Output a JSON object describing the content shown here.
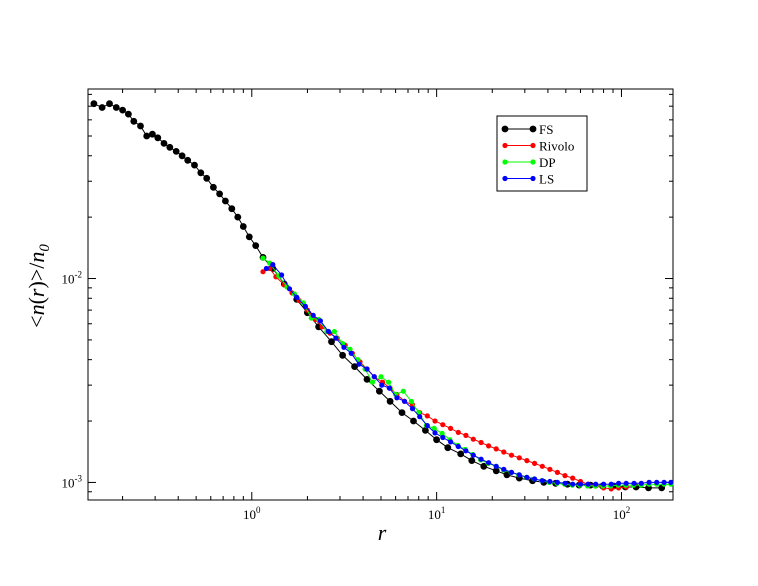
{
  "chart_data": {
    "type": "line",
    "title": "",
    "xlabel": "r",
    "ylabel": "<n(r)>/n0",
    "ylabel_parts": {
      "open": "<",
      "n": "n",
      "paren_open": "(",
      "r": "r",
      "paren_close": ")",
      "close": ">/",
      "denom": "n",
      "sub": "0"
    },
    "xscale": "log",
    "yscale": "log",
    "xlim": [
      0.13,
      190
    ],
    "ylim": [
      0.00082,
      0.085
    ],
    "grid": false,
    "legend_position": "top-right",
    "x_ticks": [
      {
        "value": 1,
        "base": "10",
        "exp": "0"
      },
      {
        "value": 10,
        "base": "10",
        "exp": "1"
      },
      {
        "value": 100,
        "base": "10",
        "exp": "2"
      }
    ],
    "y_ticks": [
      {
        "value": 0.001,
        "base": "10",
        "exp": "-3"
      },
      {
        "value": 0.01,
        "base": "10",
        "exp": "-2"
      }
    ],
    "series": [
      {
        "name": "FS",
        "color": "#000000",
        "marker_size": 3.4,
        "x": [
          0.14,
          0.155,
          0.17,
          0.185,
          0.2,
          0.215,
          0.23,
          0.25,
          0.27,
          0.29,
          0.31,
          0.335,
          0.36,
          0.39,
          0.42,
          0.45,
          0.49,
          0.53,
          0.57,
          0.62,
          0.67,
          0.72,
          0.78,
          0.84,
          0.9,
          0.97,
          1.05,
          1.15,
          1.3,
          1.5,
          1.75,
          2.0,
          2.3,
          2.7,
          3.1,
          3.6,
          4.2,
          4.9,
          5.6,
          6.5,
          7.5,
          8.7,
          10,
          11.5,
          13.5,
          15.5,
          18,
          21,
          24,
          28,
          33,
          38,
          44,
          51,
          59,
          68,
          79,
          91,
          105,
          120,
          140,
          165
        ],
        "y": [
          0.072,
          0.069,
          0.072,
          0.069,
          0.067,
          0.064,
          0.059,
          0.056,
          0.05,
          0.051,
          0.049,
          0.046,
          0.044,
          0.042,
          0.04,
          0.038,
          0.036,
          0.033,
          0.031,
          0.028,
          0.026,
          0.024,
          0.022,
          0.02,
          0.018,
          0.016,
          0.0145,
          0.0127,
          0.0112,
          0.0094,
          0.0079,
          0.0068,
          0.0058,
          0.0049,
          0.0042,
          0.0037,
          0.0032,
          0.0028,
          0.0025,
          0.0022,
          0.002,
          0.0018,
          0.00162,
          0.00148,
          0.00138,
          0.00128,
          0.0012,
          0.00114,
          0.00109,
          0.00105,
          0.00102,
          0.001,
          0.00099,
          0.00098,
          0.00097,
          0.00097,
          0.00096,
          0.00096,
          0.00095,
          0.00095,
          0.00094,
          0.00094
        ]
      },
      {
        "name": "Rivolo",
        "color": "#ff0000",
        "marker_size": 2.6,
        "x": [
          1.15,
          1.25,
          1.35,
          1.5,
          1.65,
          1.8,
          2.0,
          2.2,
          2.4,
          2.65,
          2.9,
          3.2,
          3.5,
          3.85,
          4.2,
          4.6,
          5.1,
          5.6,
          6.1,
          6.7,
          7.4,
          8.1,
          8.9,
          9.8,
          10.8,
          11.9,
          13.1,
          14.4,
          15.8,
          17.4,
          19.1,
          21,
          23.1,
          25.4,
          28,
          30.8,
          33.9,
          37.3,
          41,
          45,
          49.5,
          54.5,
          60,
          66,
          72.5,
          80,
          88,
          96.5,
          106
        ],
        "y": [
          0.0108,
          0.0112,
          0.0102,
          0.0093,
          0.0085,
          0.0078,
          0.007,
          0.0063,
          0.0058,
          0.0054,
          0.0051,
          0.0047,
          0.0043,
          0.0039,
          0.0036,
          0.0033,
          0.0031,
          0.0029,
          0.0027,
          0.0025,
          0.0024,
          0.0022,
          0.00212,
          0.002,
          0.00192,
          0.00184,
          0.00176,
          0.0017,
          0.00163,
          0.00157,
          0.00151,
          0.00146,
          0.00141,
          0.00136,
          0.00132,
          0.00128,
          0.00124,
          0.0012,
          0.00116,
          0.00112,
          0.00108,
          0.00105,
          0.00101,
          0.00098,
          0.00096,
          0.00094,
          0.00093,
          0.00094,
          0.00095
        ]
      },
      {
        "name": "DP",
        "color": "#00ff00",
        "marker_size": 2.6,
        "x": [
          1.15,
          1.25,
          1.4,
          1.55,
          1.7,
          1.9,
          2.1,
          2.3,
          2.55,
          2.8,
          3.1,
          3.4,
          3.75,
          4.1,
          4.5,
          5.0,
          5.5,
          6.0,
          6.6,
          7.3,
          8.0,
          8.8,
          9.7,
          10.7,
          11.8,
          13.0,
          14.3,
          15.7,
          17.3,
          19.0,
          21,
          23,
          25.3,
          27.8,
          30.6,
          33.7,
          37,
          40.7,
          44.8,
          49.3,
          54.2,
          59.6,
          65.6,
          72.1,
          79.3,
          87.3,
          96,
          105.6,
          116,
          128,
          141,
          155,
          170,
          185
        ],
        "y": [
          0.0126,
          0.0119,
          0.0103,
          0.0091,
          0.0084,
          0.0076,
          0.0064,
          0.0063,
          0.0055,
          0.0055,
          0.0048,
          0.0045,
          0.004,
          0.0036,
          0.0031,
          0.0033,
          0.0031,
          0.0027,
          0.0028,
          0.0025,
          0.0022,
          0.0019,
          0.00184,
          0.00174,
          0.00162,
          0.00152,
          0.00145,
          0.00137,
          0.00129,
          0.00124,
          0.0012,
          0.00115,
          0.00112,
          0.00109,
          0.00106,
          0.00104,
          0.00102,
          0.001,
          0.00099,
          0.00098,
          0.00097,
          0.00097,
          0.00096,
          0.00096,
          0.00096,
          0.00096,
          0.00097,
          0.00097,
          0.00097,
          0.00097,
          0.00098,
          0.00098,
          0.00098,
          0.00098
        ]
      },
      {
        "name": "LS",
        "color": "#0000ff",
        "marker_size": 2.6,
        "x": [
          1.2,
          1.3,
          1.45,
          1.6,
          1.75,
          1.95,
          2.15,
          2.35,
          2.6,
          2.85,
          3.15,
          3.45,
          3.8,
          4.2,
          4.6,
          5.05,
          5.55,
          6.1,
          6.7,
          7.4,
          8.1,
          8.9,
          9.8,
          10.8,
          11.9,
          13.1,
          14.4,
          15.8,
          17.4,
          19.1,
          21,
          23.1,
          25.4,
          28,
          30.8,
          33.9,
          37.3,
          41,
          45,
          49.5,
          54.5,
          60,
          66,
          72.5,
          80,
          88,
          96.5,
          106,
          117,
          128,
          141,
          155,
          170,
          185
        ],
        "y": [
          0.0112,
          0.0117,
          0.0104,
          0.0089,
          0.0081,
          0.0073,
          0.0066,
          0.0062,
          0.0055,
          0.0051,
          0.0046,
          0.0043,
          0.0038,
          0.0036,
          0.0033,
          0.003,
          0.0029,
          0.0026,
          0.0025,
          0.0023,
          0.0021,
          0.0019,
          0.00175,
          0.00166,
          0.00158,
          0.0015,
          0.00143,
          0.00136,
          0.0013,
          0.00125,
          0.0012,
          0.00116,
          0.00112,
          0.00109,
          0.00106,
          0.00104,
          0.00102,
          0.00101,
          0.001,
          0.00099,
          0.00098,
          0.00098,
          0.00098,
          0.00098,
          0.00098,
          0.00098,
          0.00099,
          0.00099,
          0.00099,
          0.00099,
          0.001,
          0.001,
          0.001,
          0.001
        ]
      }
    ]
  }
}
